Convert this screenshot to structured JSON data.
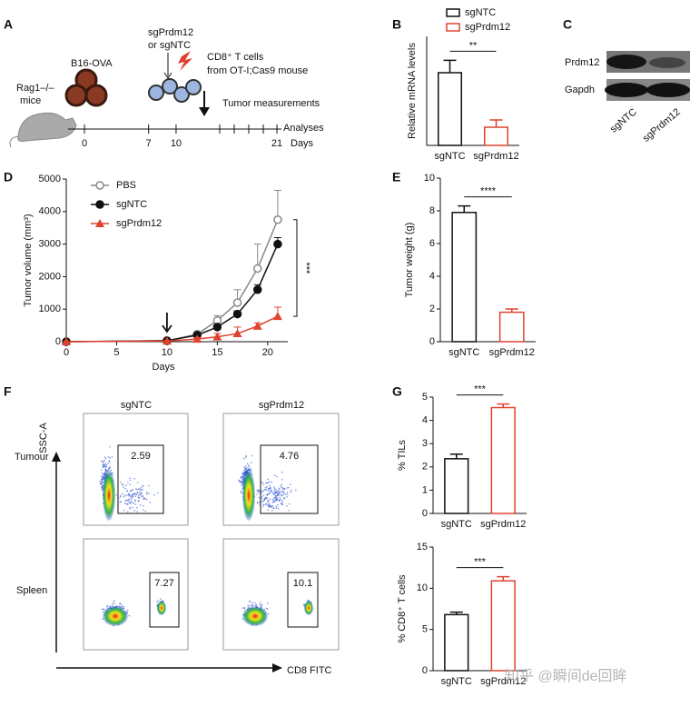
{
  "schematic": {
    "label": "A",
    "mouse_label": [
      "Rag1–/–",
      "mice"
    ],
    "tumor_label": "B16-OVA",
    "guide_label": [
      "sgPrdm12",
      "or sgNTC"
    ],
    "tcell_label": [
      "CD8⁺ T cells",
      "from OT-I;Cas9 mouse"
    ],
    "measure_label": "Tumor measurements",
    "analyses_label": "Analyses",
    "axis_label": "Days",
    "days": [
      0,
      7,
      10,
      21
    ]
  },
  "blot": {
    "label": "C",
    "rows": [
      "Prdm12",
      "Gapdh"
    ],
    "lanes": [
      "sgNTC",
      "sgPrdm12"
    ]
  },
  "flow": {
    "label": "F",
    "columns": [
      "sgNTC",
      "sgPrdm12"
    ],
    "rows": [
      "Tumour",
      "Spleen"
    ],
    "y_axis": "SSC-A",
    "x_axis": "CD8 FITC",
    "gates": [
      [
        "2.59",
        "4.76"
      ],
      [
        "7.27",
        "10.1"
      ]
    ]
  },
  "chart_data": [
    {
      "type": "bar",
      "label": "B",
      "ylabel": "Relative mRNA levels",
      "categories": [
        "sgNTC",
        "sgPrdm12"
      ],
      "values": [
        1.0,
        0.25
      ],
      "errors": [
        0.17,
        0.1
      ],
      "colors": [
        "#111111",
        "#e0422f"
      ],
      "ylim": [
        0,
        1.5
      ],
      "significance": "**",
      "legend_labels": [
        "sgNTC",
        "sgPrdm12"
      ]
    },
    {
      "type": "line",
      "label": "D",
      "ylabel": "Tumor volume (mm³)",
      "xlabel": "Days",
      "x": [
        0,
        10,
        13,
        15,
        17,
        19,
        21
      ],
      "series": [
        {
          "name": "PBS",
          "color": "#888888",
          "marker": "open-circle",
          "values": [
            0,
            30,
            230,
            650,
            1200,
            2250,
            3750
          ],
          "errors": [
            0,
            0,
            50,
            150,
            400,
            750,
            900
          ]
        },
        {
          "name": "sgNTC",
          "color": "#111111",
          "marker": "circle",
          "values": [
            0,
            30,
            200,
            450,
            850,
            1600,
            3000
          ],
          "errors": [
            0,
            0,
            30,
            60,
            100,
            150,
            200
          ]
        },
        {
          "name": "sgPrdm12",
          "color": "#e0422f",
          "marker": "triangle",
          "values": [
            0,
            20,
            80,
            150,
            250,
            480,
            780
          ],
          "errors": [
            0,
            0,
            50,
            100,
            200,
            100,
            280
          ]
        }
      ],
      "xlim": [
        0,
        22
      ],
      "xticks": [
        0,
        5,
        10,
        15,
        20
      ],
      "ylim": [
        0,
        5000
      ],
      "yticks": [
        0,
        1000,
        2000,
        3000,
        4000,
        5000
      ],
      "arrow_x": 10,
      "significance": "***"
    },
    {
      "type": "bar",
      "label": "E",
      "ylabel": "Tumor weight (g)",
      "categories": [
        "sgNTC",
        "sgPrdm12"
      ],
      "values": [
        7.9,
        1.8
      ],
      "errors": [
        0.4,
        0.2
      ],
      "colors": [
        "#111111",
        "#e0422f"
      ],
      "ylim": [
        0,
        10
      ],
      "yticks": [
        0,
        2,
        4,
        6,
        8,
        10
      ],
      "significance": "****"
    },
    {
      "type": "bar",
      "label": "G",
      "ylabel": "% TILs",
      "categories": [
        "sgNTC",
        "sgPrdm12"
      ],
      "values": [
        2.35,
        4.55
      ],
      "errors": [
        0.2,
        0.15
      ],
      "colors": [
        "#111111",
        "#e0422f"
      ],
      "ylim": [
        0,
        5
      ],
      "yticks": [
        0,
        1,
        2,
        3,
        4,
        5
      ],
      "significance": "***"
    },
    {
      "type": "bar",
      "ylabel": "% CD8⁺ T cells",
      "categories": [
        "sgNTC",
        "sgPrdm12"
      ],
      "values": [
        6.8,
        10.9
      ],
      "errors": [
        0.3,
        0.5
      ],
      "colors": [
        "#111111",
        "#e0422f"
      ],
      "ylim": [
        0,
        15
      ],
      "yticks": [
        0,
        5,
        10,
        15
      ],
      "significance": "***"
    }
  ],
  "watermark": "知乎 @瞬间de回眸"
}
